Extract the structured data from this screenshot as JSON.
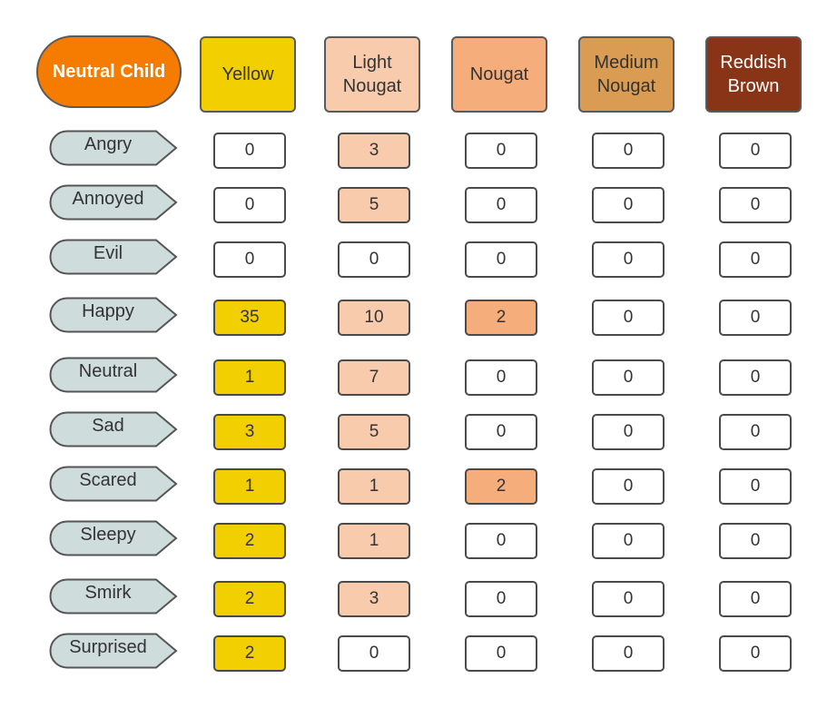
{
  "title": "Neutral Child",
  "colors": {
    "title_fill": "#f57c00",
    "tag_fill": "#cfdcdc",
    "empty_cell": "#ffffff"
  },
  "columns": [
    {
      "label": "Yellow",
      "fill": "#f2cf00",
      "text": "#333333"
    },
    {
      "label": "Light\nNougat",
      "fill": "#f8cbad",
      "text": "#333333"
    },
    {
      "label": "Nougat",
      "fill": "#f6ad7c",
      "text": "#333333"
    },
    {
      "label": "Medium\nNougat",
      "fill": "#d99c52",
      "text": "#333333"
    },
    {
      "label": "Reddish\nBrown",
      "fill": "#8a3417",
      "text": "#ffffff"
    }
  ],
  "rows": [
    {
      "label": "Angry",
      "values": [
        0,
        3,
        0,
        0,
        0
      ]
    },
    {
      "label": "Annoyed",
      "values": [
        0,
        5,
        0,
        0,
        0
      ]
    },
    {
      "label": "Evil",
      "values": [
        0,
        0,
        0,
        0,
        0
      ]
    },
    {
      "label": "Happy",
      "values": [
        35,
        10,
        2,
        0,
        0
      ]
    },
    {
      "label": "Neutral",
      "values": [
        1,
        7,
        0,
        0,
        0
      ]
    },
    {
      "label": "Sad",
      "values": [
        3,
        5,
        0,
        0,
        0
      ]
    },
    {
      "label": "Scared",
      "values": [
        1,
        1,
        2,
        0,
        0
      ]
    },
    {
      "label": "Sleepy",
      "values": [
        2,
        1,
        0,
        0,
        0
      ]
    },
    {
      "label": "Smirk",
      "values": [
        2,
        3,
        0,
        0,
        0
      ]
    },
    {
      "label": "Surprised",
      "values": [
        2,
        0,
        0,
        0,
        0
      ]
    }
  ]
}
